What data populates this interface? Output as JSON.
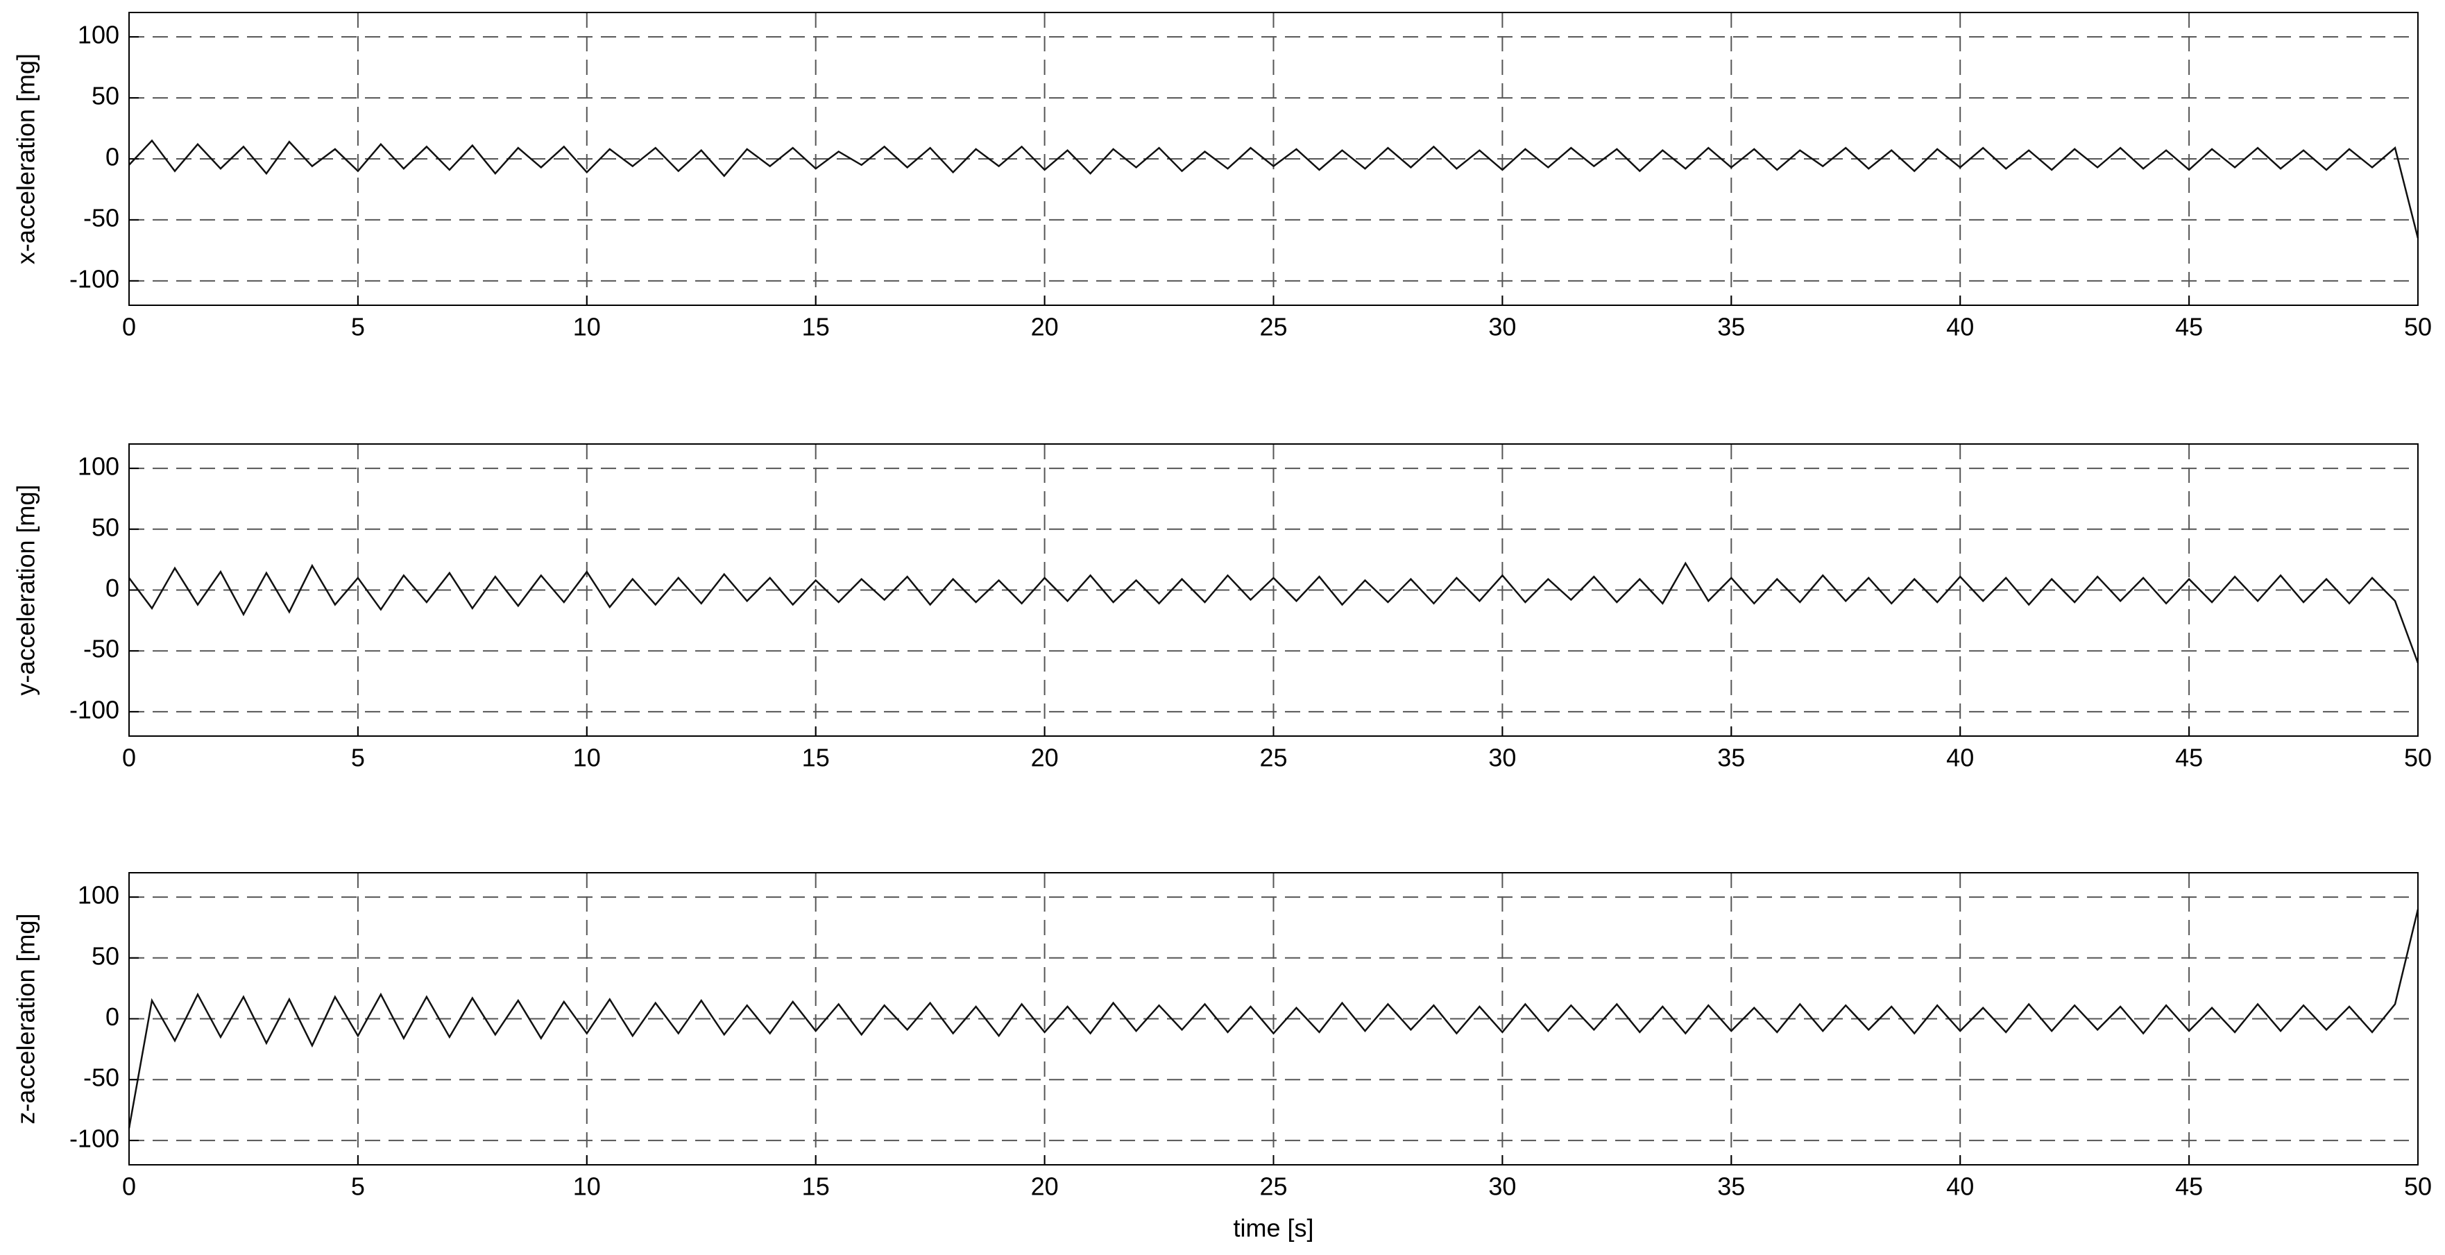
{
  "chart_data": [
    {
      "type": "line",
      "ylabel": "x-acceleration [mg]",
      "color": "#111111",
      "grid": true,
      "xlim": [
        0,
        50
      ],
      "xticks": [
        0,
        5,
        10,
        15,
        20,
        25,
        30,
        35,
        40,
        45,
        50
      ],
      "ylim": [
        -120,
        120
      ],
      "yticks": [
        -100,
        -50,
        0,
        50,
        100
      ],
      "x": [
        0,
        0.5,
        1,
        1.5,
        2,
        2.5,
        3,
        3.5,
        4,
        4.5,
        5,
        5.5,
        6,
        6.5,
        7,
        7.5,
        8,
        8.5,
        9,
        9.5,
        10,
        10.5,
        11,
        11.5,
        12,
        12.5,
        13,
        13.5,
        14,
        14.5,
        15,
        15.5,
        16,
        16.5,
        17,
        17.5,
        18,
        18.5,
        19,
        19.5,
        20,
        20.5,
        21,
        21.5,
        22,
        22.5,
        23,
        23.5,
        24,
        24.5,
        25,
        25.5,
        26,
        26.5,
        27,
        27.5,
        28,
        28.5,
        29,
        29.5,
        30,
        30.5,
        31,
        31.5,
        32,
        32.5,
        33,
        33.5,
        34,
        34.5,
        35,
        35.5,
        36,
        36.5,
        37,
        37.5,
        38,
        38.5,
        39,
        39.5,
        40,
        40.5,
        41,
        41.5,
        42,
        42.5,
        43,
        43.5,
        44,
        44.5,
        45,
        45.5,
        46,
        46.5,
        47,
        47.5,
        48,
        48.5,
        49,
        49.5,
        50
      ],
      "values": [
        -5,
        15,
        -10,
        12,
        -8,
        10,
        -12,
        14,
        -6,
        8,
        -10,
        12,
        -8,
        10,
        -9,
        11,
        -12,
        9,
        -7,
        10,
        -11,
        8,
        -6,
        9,
        -10,
        7,
        -14,
        8,
        -6,
        9,
        -8,
        6,
        -5,
        10,
        -7,
        9,
        -11,
        8,
        -6,
        10,
        -9,
        7,
        -12,
        8,
        -7,
        9,
        -10,
        6,
        -8,
        9,
        -6,
        8,
        -9,
        7,
        -8,
        9,
        -7,
        10,
        -8,
        7,
        -9,
        8,
        -7,
        9,
        -6,
        8,
        -10,
        7,
        -8,
        9,
        -7,
        8,
        -9,
        7,
        -6,
        9,
        -8,
        7,
        -10,
        8,
        -7,
        9,
        -8,
        7,
        -9,
        8,
        -7,
        9,
        -8,
        7,
        -9,
        8,
        -7,
        9,
        -8,
        7,
        -9,
        8,
        -7,
        9,
        -65
      ]
    },
    {
      "type": "line",
      "ylabel": "y-acceleration [mg]",
      "color": "#111111",
      "grid": true,
      "xlim": [
        0,
        50
      ],
      "xticks": [
        0,
        5,
        10,
        15,
        20,
        25,
        30,
        35,
        40,
        45,
        50
      ],
      "ylim": [
        -120,
        120
      ],
      "yticks": [
        -100,
        -50,
        0,
        50,
        100
      ],
      "x": [
        0,
        0.5,
        1,
        1.5,
        2,
        2.5,
        3,
        3.5,
        4,
        4.5,
        5,
        5.5,
        6,
        6.5,
        7,
        7.5,
        8,
        8.5,
        9,
        9.5,
        10,
        10.5,
        11,
        11.5,
        12,
        12.5,
        13,
        13.5,
        14,
        14.5,
        15,
        15.5,
        16,
        16.5,
        17,
        17.5,
        18,
        18.5,
        19,
        19.5,
        20,
        20.5,
        21,
        21.5,
        22,
        22.5,
        23,
        23.5,
        24,
        24.5,
        25,
        25.5,
        26,
        26.5,
        27,
        27.5,
        28,
        28.5,
        29,
        29.5,
        30,
        30.5,
        31,
        31.5,
        32,
        32.5,
        33,
        33.5,
        34,
        34.5,
        35,
        35.5,
        36,
        36.5,
        37,
        37.5,
        38,
        38.5,
        39,
        39.5,
        40,
        40.5,
        41,
        41.5,
        42,
        42.5,
        43,
        43.5,
        44,
        44.5,
        45,
        45.5,
        46,
        46.5,
        47,
        47.5,
        48,
        48.5,
        49,
        49.5,
        50
      ],
      "values": [
        10,
        -15,
        18,
        -12,
        15,
        -20,
        14,
        -18,
        20,
        -12,
        10,
        -16,
        12,
        -10,
        14,
        -15,
        11,
        -13,
        12,
        -10,
        15,
        -14,
        9,
        -12,
        10,
        -11,
        13,
        -9,
        10,
        -12,
        8,
        -10,
        9,
        -8,
        11,
        -12,
        9,
        -10,
        8,
        -11,
        10,
        -9,
        12,
        -10,
        8,
        -11,
        9,
        -10,
        12,
        -8,
        10,
        -9,
        11,
        -12,
        8,
        -10,
        9,
        -11,
        10,
        -9,
        12,
        -10,
        9,
        -8,
        11,
        -10,
        9,
        -11,
        22,
        -9,
        10,
        -11,
        9,
        -10,
        12,
        -9,
        10,
        -11,
        9,
        -10,
        11,
        -9,
        10,
        -12,
        9,
        -10,
        11,
        -9,
        10,
        -11,
        9,
        -10,
        11,
        -9,
        12,
        -10,
        9,
        -11,
        10,
        -9,
        -60
      ]
    },
    {
      "type": "line",
      "ylabel": "z-acceleration [mg]",
      "xlabel": "time [s]",
      "color": "#111111",
      "grid": true,
      "xlim": [
        0,
        50
      ],
      "xticks": [
        0,
        5,
        10,
        15,
        20,
        25,
        30,
        35,
        40,
        45,
        50
      ],
      "ylim": [
        -120,
        120
      ],
      "yticks": [
        -100,
        -50,
        0,
        50,
        100
      ],
      "x": [
        0,
        0.5,
        1,
        1.5,
        2,
        2.5,
        3,
        3.5,
        4,
        4.5,
        5,
        5.5,
        6,
        6.5,
        7,
        7.5,
        8,
        8.5,
        9,
        9.5,
        10,
        10.5,
        11,
        11.5,
        12,
        12.5,
        13,
        13.5,
        14,
        14.5,
        15,
        15.5,
        16,
        16.5,
        17,
        17.5,
        18,
        18.5,
        19,
        19.5,
        20,
        20.5,
        21,
        21.5,
        22,
        22.5,
        23,
        23.5,
        24,
        24.5,
        25,
        25.5,
        26,
        26.5,
        27,
        27.5,
        28,
        28.5,
        29,
        29.5,
        30,
        30.5,
        31,
        31.5,
        32,
        32.5,
        33,
        33.5,
        34,
        34.5,
        35,
        35.5,
        36,
        36.5,
        37,
        37.5,
        38,
        38.5,
        39,
        39.5,
        40,
        40.5,
        41,
        41.5,
        42,
        42.5,
        43,
        43.5,
        44,
        44.5,
        45,
        45.5,
        46,
        46.5,
        47,
        47.5,
        48,
        48.5,
        49,
        49.5,
        50
      ],
      "values": [
        -90,
        15,
        -18,
        20,
        -15,
        18,
        -20,
        16,
        -22,
        18,
        -14,
        20,
        -16,
        18,
        -15,
        17,
        -13,
        15,
        -16,
        14,
        -12,
        16,
        -14,
        13,
        -12,
        15,
        -13,
        11,
        -12,
        14,
        -10,
        12,
        -13,
        11,
        -9,
        13,
        -12,
        10,
        -14,
        12,
        -11,
        10,
        -12,
        13,
        -10,
        11,
        -9,
        12,
        -11,
        10,
        -12,
        9,
        -11,
        13,
        -10,
        12,
        -9,
        11,
        -12,
        10,
        -11,
        12,
        -10,
        11,
        -9,
        12,
        -11,
        10,
        -12,
        11,
        -10,
        9,
        -11,
        12,
        -10,
        11,
        -9,
        10,
        -12,
        11,
        -10,
        9,
        -11,
        12,
        -10,
        11,
        -9,
        10,
        -12,
        11,
        -10,
        9,
        -11,
        12,
        -10,
        11,
        -9,
        10,
        -11,
        12,
        90
      ]
    }
  ]
}
